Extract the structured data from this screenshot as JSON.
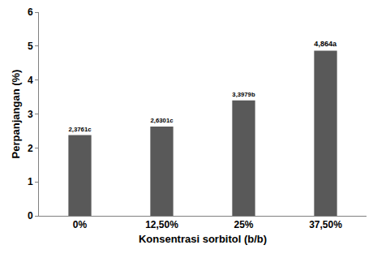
{
  "chart_data": {
    "type": "bar",
    "x_label": "Konsentrasi sorbitol (b/b)",
    "y_label": "Perpanjangan (%)",
    "categories": [
      "0%",
      "12,50%",
      "25%",
      "37,50%"
    ],
    "values": [
      2.3761,
      2.6301,
      3.3979,
      4.864
    ],
    "value_labels": [
      "2,3761c",
      "2,6301c",
      "3,3979b",
      "4,864a"
    ],
    "data_labels": true,
    "color": "#595959",
    "ylim": [
      0,
      6
    ],
    "yticks": [
      0,
      1,
      2,
      3,
      4,
      5,
      6
    ],
    "grid": false
  }
}
